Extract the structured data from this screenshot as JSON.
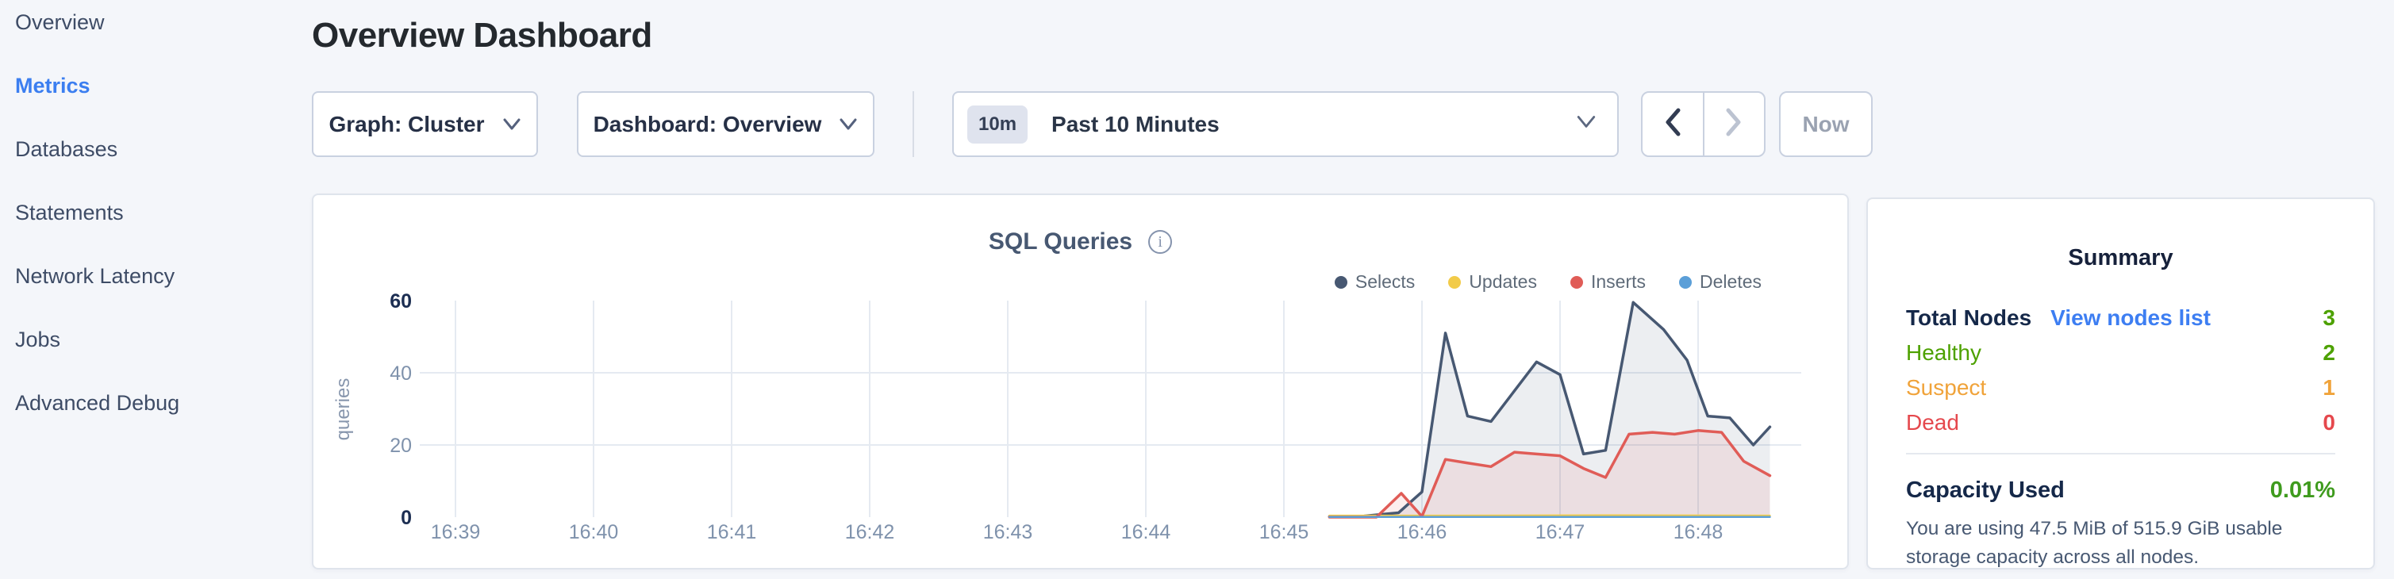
{
  "sidebar": {
    "items": [
      {
        "label": "Overview",
        "active": false
      },
      {
        "label": "Metrics",
        "active": true
      },
      {
        "label": "Databases",
        "active": false
      },
      {
        "label": "Statements",
        "active": false
      },
      {
        "label": "Network Latency",
        "active": false
      },
      {
        "label": "Jobs",
        "active": false
      },
      {
        "label": "Advanced Debug",
        "active": false
      }
    ],
    "active_color": "#3b7ef0"
  },
  "header": {
    "title": "Overview Dashboard"
  },
  "toolbar": {
    "graph_dropdown_label": "Graph: Cluster",
    "dashboard_dropdown_label": "Dashboard: Overview",
    "time_badge": "10m",
    "time_label": "Past 10 Minutes",
    "now_label": "Now"
  },
  "chart_card": {
    "title": "SQL Queries",
    "info_icon_glyph": "i"
  },
  "chart_data": {
    "type": "area",
    "title": "SQL Queries",
    "ylabel": "queries",
    "y_ticks": [
      0,
      20,
      40,
      60
    ],
    "y_major_ticks": [
      0,
      60
    ],
    "ylim": [
      0,
      60
    ],
    "x_tick_labels": [
      "16:39",
      "16:40",
      "16:41",
      "16:42",
      "16:43",
      "16:44",
      "16:45",
      "16:46",
      "16:47",
      "16:48"
    ],
    "x_unit": "minutes after 16:39",
    "grid": "on",
    "legend_position": "top-right",
    "series": [
      {
        "name": "Selects",
        "color": "#475872",
        "fill": "rgba(71,88,114,0.10)",
        "points": [
          [
            6.33,
            0.2
          ],
          [
            6.58,
            0.3
          ],
          [
            6.83,
            1.2
          ],
          [
            7.0,
            7
          ],
          [
            7.17,
            51
          ],
          [
            7.33,
            28
          ],
          [
            7.5,
            26.5
          ],
          [
            7.83,
            43
          ],
          [
            8.0,
            39.5
          ],
          [
            8.17,
            17.5
          ],
          [
            8.33,
            18.5
          ],
          [
            8.53,
            59.5
          ],
          [
            8.75,
            52
          ],
          [
            8.92,
            43.5
          ],
          [
            9.07,
            28
          ],
          [
            9.23,
            27.5
          ],
          [
            9.4,
            20
          ],
          [
            9.52,
            25
          ]
        ]
      },
      {
        "name": "Updates",
        "color": "#f2cb49",
        "fill": "none",
        "points": [
          [
            6.33,
            0.4
          ],
          [
            7.2,
            0.4
          ],
          [
            8.3,
            0.5
          ],
          [
            9.52,
            0.4
          ]
        ]
      },
      {
        "name": "Inserts",
        "color": "#e05c57",
        "fill": "rgba(224,92,87,0.10)",
        "points": [
          [
            6.33,
            0
          ],
          [
            6.67,
            0
          ],
          [
            6.85,
            6.6
          ],
          [
            7.0,
            0.2
          ],
          [
            7.17,
            16
          ],
          [
            7.33,
            15
          ],
          [
            7.5,
            14
          ],
          [
            7.67,
            18
          ],
          [
            7.83,
            17.5
          ],
          [
            8.0,
            17
          ],
          [
            8.17,
            13.5
          ],
          [
            8.33,
            11
          ],
          [
            8.5,
            23
          ],
          [
            8.67,
            23.5
          ],
          [
            8.83,
            23
          ],
          [
            9.0,
            24
          ],
          [
            9.17,
            23.5
          ],
          [
            9.33,
            15.5
          ],
          [
            9.52,
            11.5
          ]
        ]
      },
      {
        "name": "Deletes",
        "color": "#5b9fd8",
        "fill": "none",
        "points": [
          [
            6.33,
            0.05
          ],
          [
            9.52,
            0.05
          ]
        ]
      }
    ]
  },
  "summary": {
    "heading": "Summary",
    "total_nodes": {
      "label": "Total Nodes",
      "link_label": "View nodes list",
      "value": "3",
      "value_color": "#4da100"
    },
    "statuses": [
      {
        "label": "Healthy",
        "value": "2",
        "color": "#4da100"
      },
      {
        "label": "Suspect",
        "value": "1",
        "color": "#f0a33a"
      },
      {
        "label": "Dead",
        "value": "0",
        "color": "#e5484d"
      }
    ],
    "capacity": {
      "label": "Capacity Used",
      "value": "0.01%",
      "value_color": "#3f9b1e",
      "description": "You are using 47.5 MiB of 515.9 GiB usable storage capacity across all nodes."
    }
  }
}
